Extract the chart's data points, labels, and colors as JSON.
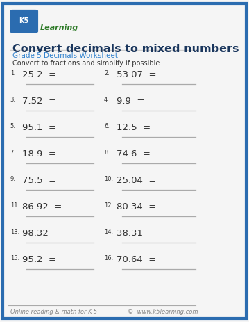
{
  "title": "Convert decimals to mixed numbers",
  "subtitle": "Grade 5 Decimals Worksheet",
  "instruction": "Convert to fractions and simplify if possible.",
  "border_color": "#2b6cb0",
  "background_color": "#f5f5f5",
  "title_color": "#1a365d",
  "subtitle_color": "#3182ce",
  "text_color": "#333333",
  "line_color": "#aaaaaa",
  "footer_color": "#888888",
  "problems": [
    [
      "25.2",
      "53.07"
    ],
    [
      "7.52",
      "9.9"
    ],
    [
      "95.1",
      "12.5"
    ],
    [
      "18.9",
      "74.6"
    ],
    [
      "75.5",
      "25.04"
    ],
    [
      "86.92",
      "80.34"
    ],
    [
      "98.32",
      "38.31"
    ],
    [
      "95.2",
      "70.64"
    ]
  ],
  "footer_left": "Online reading & math for K-5",
  "footer_right": "©  www.k5learning.com"
}
